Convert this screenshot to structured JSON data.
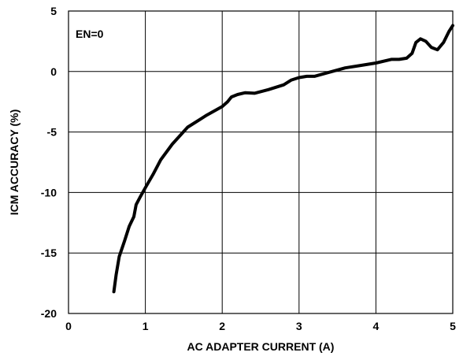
{
  "chart_data": {
    "type": "line",
    "title": "",
    "xlabel": "AC ADAPTER CURRENT (A)",
    "ylabel": "ICM ACCURACY (%)",
    "xlim": [
      0,
      5
    ],
    "ylim": [
      -20,
      5
    ],
    "xticks": [
      0,
      1,
      2,
      3,
      4,
      5
    ],
    "yticks": [
      5,
      0,
      -5,
      -10,
      -15,
      -20
    ],
    "grid": true,
    "annotation": "EN=0",
    "series": [
      {
        "color": "#000000",
        "points": [
          [
            0.59,
            -18.2
          ],
          [
            0.62,
            -16.8
          ],
          [
            0.66,
            -15.3
          ],
          [
            0.73,
            -14.0
          ],
          [
            0.79,
            -12.8
          ],
          [
            0.85,
            -12.0
          ],
          [
            0.88,
            -11.0
          ],
          [
            0.93,
            -10.4
          ],
          [
            1.0,
            -9.6
          ],
          [
            1.1,
            -8.5
          ],
          [
            1.2,
            -7.3
          ],
          [
            1.35,
            -6.0
          ],
          [
            1.55,
            -4.6
          ],
          [
            1.8,
            -3.6
          ],
          [
            2.0,
            -2.9
          ],
          [
            2.07,
            -2.5
          ],
          [
            2.12,
            -2.1
          ],
          [
            2.2,
            -1.9
          ],
          [
            2.3,
            -1.75
          ],
          [
            2.42,
            -1.8
          ],
          [
            2.6,
            -1.5
          ],
          [
            2.8,
            -1.1
          ],
          [
            2.9,
            -0.7
          ],
          [
            3.0,
            -0.5
          ],
          [
            3.1,
            -0.4
          ],
          [
            3.2,
            -0.4
          ],
          [
            3.4,
            -0.05
          ],
          [
            3.6,
            0.3
          ],
          [
            3.8,
            0.5
          ],
          [
            4.0,
            0.7
          ],
          [
            4.2,
            1.0
          ],
          [
            4.3,
            1.0
          ],
          [
            4.4,
            1.1
          ],
          [
            4.47,
            1.5
          ],
          [
            4.52,
            2.4
          ],
          [
            4.58,
            2.7
          ],
          [
            4.65,
            2.5
          ],
          [
            4.72,
            2.0
          ],
          [
            4.8,
            1.8
          ],
          [
            4.88,
            2.4
          ],
          [
            4.95,
            3.3
          ],
          [
            5.0,
            3.8
          ]
        ]
      }
    ]
  }
}
